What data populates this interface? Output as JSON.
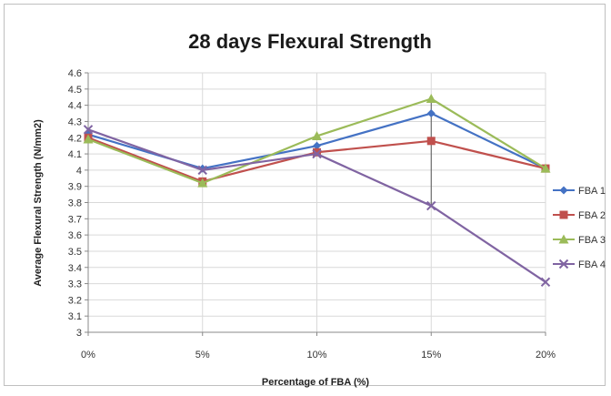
{
  "chart_data": {
    "type": "line",
    "title": "28 days Flexural Strength",
    "xlabel": "Percentage of FBA (%)",
    "ylabel": "Average Flexural Strength (N/mm2)",
    "categories": [
      "0%",
      "5%",
      "10%",
      "15%",
      "20%"
    ],
    "ylim": [
      3,
      4.6
    ],
    "ytick_step": 0.1,
    "yticks": [
      "3",
      "3.1",
      "3.2",
      "3.3",
      "3.4",
      "3.5",
      "3.6",
      "3.7",
      "3.8",
      "3.9",
      "4",
      "4.1",
      "4.2",
      "4.3",
      "4.4",
      "4.5",
      "4.6"
    ],
    "grid": true,
    "legend_position": "right",
    "series": [
      {
        "name": "FBA 1",
        "color": "#4472C4",
        "marker": "diamond",
        "values": [
          4.22,
          4.01,
          4.15,
          4.35,
          4.01
        ]
      },
      {
        "name": "FBA 2",
        "color": "#C0504D",
        "marker": "square",
        "values": [
          4.2,
          3.93,
          4.11,
          4.18,
          4.01
        ]
      },
      {
        "name": "FBA 3",
        "color": "#9BBB59",
        "marker": "triangle",
        "values": [
          4.19,
          3.92,
          4.21,
          4.44,
          4.01
        ]
      },
      {
        "name": "FBA 4",
        "color": "#8064A2",
        "marker": "x",
        "values": [
          4.25,
          4.0,
          4.1,
          3.78,
          3.31
        ]
      }
    ]
  }
}
